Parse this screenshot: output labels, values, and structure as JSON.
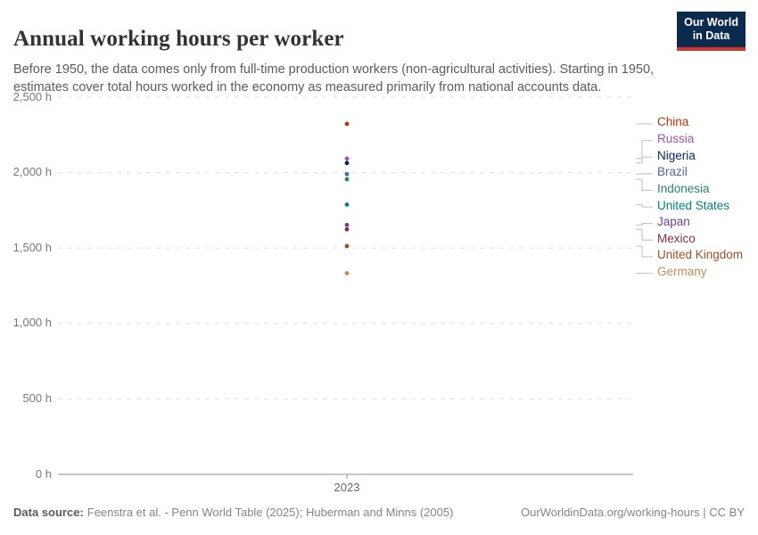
{
  "header": {
    "title": "Annual working hours per worker",
    "subtitle": "Before 1950, the data comes only from full-time production workers (non-agricultural activities). Starting in 1950, estimates cover total hours worked in the economy as measured primarily from national accounts data.",
    "logo_line1": "Our World",
    "logo_line2": "in Data",
    "logo_bg_color": "#0B2A4E",
    "logo_stripe_color": "#D4342C"
  },
  "chart_data": {
    "type": "scatter",
    "title": "Annual working hours per worker",
    "xlabel": "",
    "ylabel": "",
    "x": [
      2023
    ],
    "x_tick_label": "2023",
    "ylim": [
      0,
      2500
    ],
    "grid": true,
    "legend_position": "right",
    "yticks": [
      {
        "value": 0,
        "label": "0 h"
      },
      {
        "value": 500,
        "label": "500 h"
      },
      {
        "value": 1000,
        "label": "1,000 h"
      },
      {
        "value": 1500,
        "label": "1,500 h"
      },
      {
        "value": 2000,
        "label": "2,000 h"
      },
      {
        "value": 2500,
        "label": "2,500 h"
      }
    ],
    "unit": "hours per worker per year",
    "series": [
      {
        "name": "China",
        "values": [
          2323
        ],
        "color": "#B13507"
      },
      {
        "name": "Russia",
        "values": [
          2093
        ],
        "color": "#A2559C"
      },
      {
        "name": "Nigeria",
        "values": [
          2064
        ],
        "color": "#00295B"
      },
      {
        "name": "Brazil",
        "values": [
          1990
        ],
        "color": "#4C6A9C"
      },
      {
        "name": "Indonesia",
        "values": [
          1956
        ],
        "color": "#2E8465"
      },
      {
        "name": "United States",
        "values": [
          1788
        ],
        "color": "#00847E"
      },
      {
        "name": "Japan",
        "values": [
          1653
        ],
        "color": "#6D3E91"
      },
      {
        "name": "Mexico",
        "values": [
          1624
        ],
        "color": "#883039"
      },
      {
        "name": "United Kingdom",
        "values": [
          1513
        ],
        "color": "#9A5129"
      },
      {
        "name": "Germany",
        "values": [
          1333
        ],
        "color": "#BC8E5A"
      }
    ],
    "style": {
      "gridline_color": "#e0e0e0",
      "axis_line_color": "#8f8f8f",
      "leader_line_color": "#c9c9c9"
    }
  },
  "footer": {
    "datasource_label": "Data source:",
    "datasource_text": "Feenstra et al. - Penn World Table (2025); Huberman and Minns (2005)",
    "link_text": "OurWorldinData.org/working-hours | CC BY"
  }
}
